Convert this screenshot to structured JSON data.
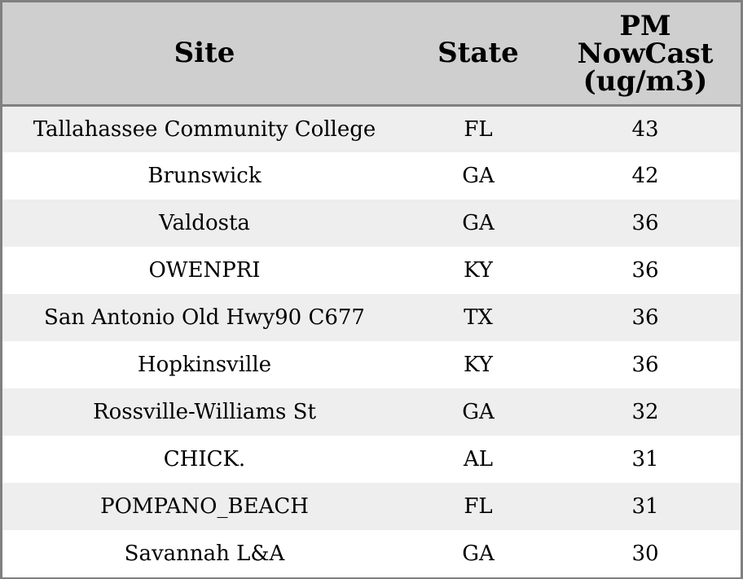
{
  "chart_data": {
    "type": "table",
    "columns": [
      "Site",
      "State",
      "PM NowCast (ug/m3)"
    ],
    "header_lines": {
      "site": "Site",
      "state": "State",
      "value": [
        "PM",
        "NowCast",
        "(ug/m3)"
      ]
    },
    "rows": [
      {
        "site": "Tallahassee Community College",
        "state": "FL",
        "value": "43"
      },
      {
        "site": "Brunswick",
        "state": "GA",
        "value": "42"
      },
      {
        "site": "Valdosta",
        "state": "GA",
        "value": "36"
      },
      {
        "site": "OWENPRI",
        "state": "KY",
        "value": "36"
      },
      {
        "site": "San Antonio Old Hwy90 C677",
        "state": "TX",
        "value": "36"
      },
      {
        "site": "Hopkinsville",
        "state": "KY",
        "value": "36"
      },
      {
        "site": "Rossville-Williams St",
        "state": "GA",
        "value": "32"
      },
      {
        "site": "CHICK.",
        "state": "AL",
        "value": "31"
      },
      {
        "site": "POMPANO_BEACH",
        "state": "FL",
        "value": "31"
      },
      {
        "site": "Savannah L&A",
        "state": "GA",
        "value": "30"
      }
    ]
  },
  "colors": {
    "header_background": "#cfcfcf",
    "stripe_background": "#eeeeee",
    "row_background": "#ffffff",
    "border": "#808080",
    "text": "#000000"
  }
}
